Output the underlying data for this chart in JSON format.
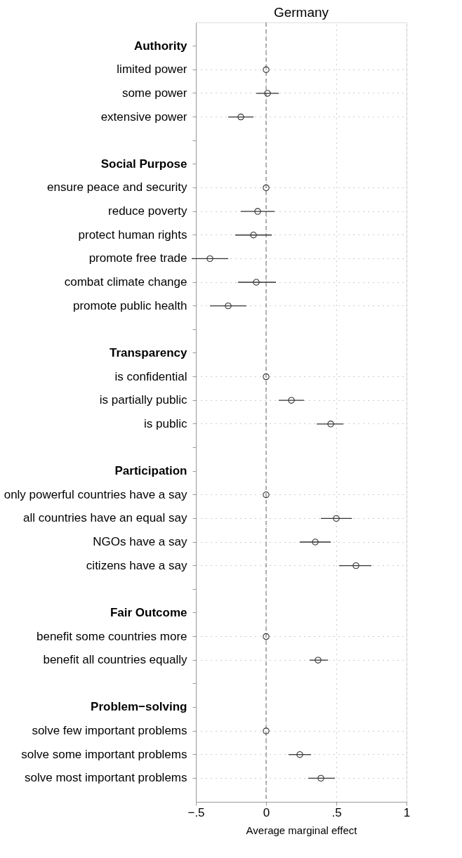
{
  "chart_data": {
    "type": "scatter",
    "orientation": "horizontal",
    "title": "Germany",
    "xlabel": "Average marginal effect",
    "categories": [
      "Authority",
      "limited power",
      "some power",
      "extensive power",
      null,
      "Social Purpose",
      "ensure peace and security",
      "reduce poverty",
      "protect human rights",
      "promote free trade",
      "combat climate change",
      "promote public health",
      null,
      "Transparency",
      "is confidential",
      "is partially public",
      "is public",
      null,
      "Participation",
      "only powerful countries have a say",
      "all countries have an equal say",
      "NGOs have a say",
      "citizens have a say",
      null,
      "Fair Outcome",
      "benefit some countries more",
      "benefit all countries equally",
      null,
      "Problem−solving",
      "solve few important problems",
      "solve some important problems",
      "solve most important problems"
    ],
    "values": [
      null,
      0,
      0.01,
      -0.18,
      null,
      null,
      0,
      -0.06,
      -0.09,
      -0.4,
      -0.07,
      -0.27,
      null,
      null,
      0,
      0.18,
      0.46,
      null,
      null,
      0,
      0.5,
      0.35,
      0.64,
      null,
      null,
      0,
      0.37,
      null,
      null,
      0,
      0.24,
      0.39
    ],
    "errors": [
      null,
      null,
      [
        -0.07,
        0.09
      ],
      [
        -0.27,
        -0.09
      ],
      null,
      null,
      null,
      [
        -0.18,
        0.06
      ],
      [
        -0.22,
        0.04
      ],
      [
        -0.53,
        -0.27
      ],
      [
        -0.2,
        0.07
      ],
      [
        -0.4,
        -0.14
      ],
      null,
      null,
      null,
      [
        0.09,
        0.27
      ],
      [
        0.36,
        0.55
      ],
      null,
      null,
      null,
      [
        0.39,
        0.61
      ],
      [
        0.24,
        0.46
      ],
      [
        0.52,
        0.75
      ],
      null,
      null,
      null,
      [
        0.31,
        0.44
      ],
      null,
      null,
      null,
      [
        0.16,
        0.32
      ],
      [
        0.3,
        0.49
      ]
    ],
    "color": "#333333",
    "marker": "circle",
    "grid": true,
    "xlim": [
      -0.5,
      1
    ],
    "xticks": [
      {
        "value": -0.5,
        "label": "−.5"
      },
      0,
      {
        "value": 0.5,
        "label": ".5"
      },
      1
    ],
    "ref_lines": [
      {
        "axis": "x",
        "value": 0,
        "line_style": "dashed",
        "color": "#666666"
      }
    ]
  }
}
